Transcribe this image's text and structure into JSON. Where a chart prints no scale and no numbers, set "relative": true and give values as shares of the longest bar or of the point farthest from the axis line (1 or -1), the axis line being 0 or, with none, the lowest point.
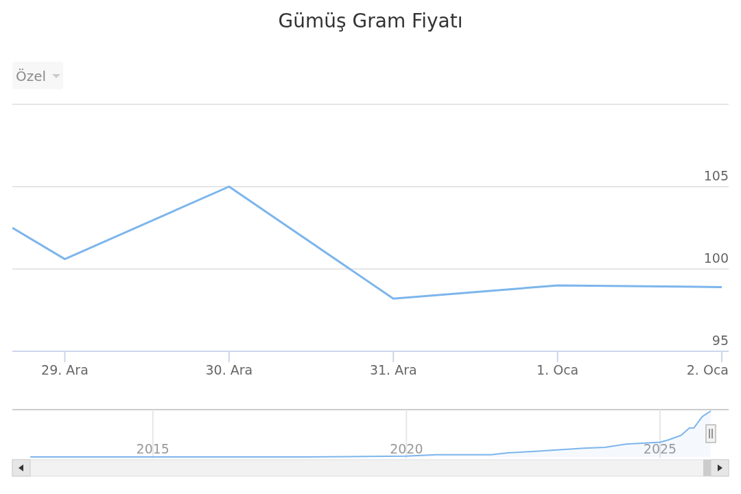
{
  "chart_data": [
    {
      "type": "line",
      "title": "Gümüş Gram Fiyatı",
      "annotations": [
        "Özel"
      ],
      "x": [
        "2025-12-28T16:20",
        "2025-12-29",
        "2025-12-30",
        "2025-12-31",
        "2026-01-01",
        "2026-01-02"
      ],
      "series": [
        {
          "color": "#7cb5ec",
          "values": [
            102.5,
            100.6,
            105.0,
            98.2,
            99.0,
            98.9
          ]
        }
      ],
      "xlim": [
        "2025-12-28T16:20",
        "2026-01-02T01:00"
      ],
      "xticks": [
        {
          "value": "2025-12-29",
          "label": "29. Ara"
        },
        {
          "value": "2025-12-30",
          "label": "30. Ara"
        },
        {
          "value": "2025-12-31",
          "label": "31. Ara"
        },
        {
          "value": "2026-01-01",
          "label": "1. Oca"
        },
        {
          "value": "2026-01-02",
          "label": "2. Oca"
        }
      ],
      "ylim": [
        95,
        110
      ],
      "yticks": [
        95,
        100,
        105,
        {
          "value": 110,
          "label": null
        }
      ],
      "grid": "y",
      "marker": "none"
    },
    {
      "type": "area",
      "relative": true,
      "x": [
        "2012-08",
        "2015-01",
        "2018-01",
        "2020-01",
        "2020-08",
        "2021-09",
        "2022-01",
        "2022-07",
        "2023-07",
        "2023-12",
        "2024-05",
        "2025-01",
        "2025-03",
        "2025-06",
        "2025-08",
        "2025-09",
        "2025-11",
        "2026-01-02"
      ],
      "series": [
        {
          "color": "#7cb5ec",
          "values": [
            0,
            0,
            0,
            0.02,
            0.05,
            0.05,
            0.09,
            0.12,
            0.19,
            0.21,
            0.28,
            0.32,
            0.37,
            0.47,
            0.63,
            0.63,
            0.88,
            1
          ]
        }
      ],
      "xlim": [
        "2012-03-25",
        "2026-05-10"
      ],
      "xticks": [
        "2015",
        "2020",
        "2025"
      ],
      "grid": "x"
    }
  ]
}
